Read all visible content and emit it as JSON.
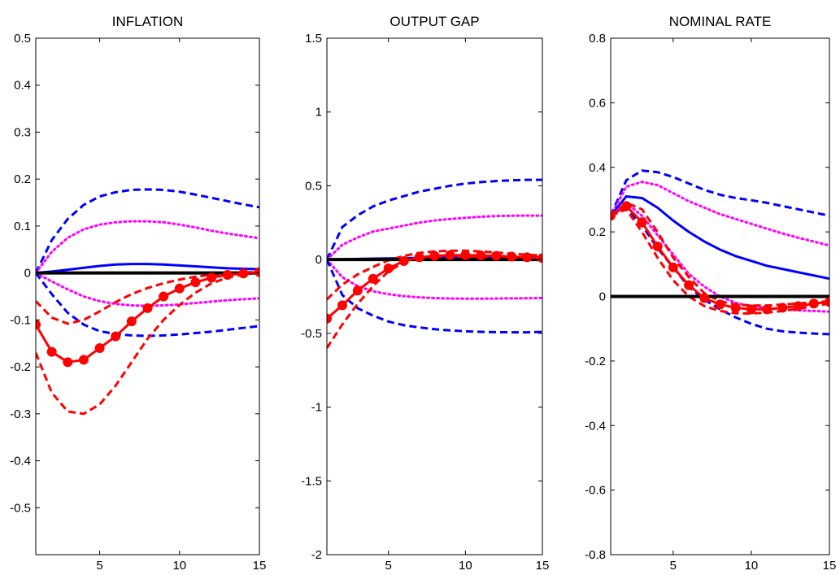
{
  "figure": {
    "background": "#ffffff"
  },
  "chart_data": [
    {
      "type": "line",
      "title": "INFLATION",
      "xlim": [
        1,
        15
      ],
      "ylim": [
        -0.6,
        0.5
      ],
      "xticks": [
        5,
        10,
        15
      ],
      "yticks": [
        -0.5,
        -0.4,
        -0.3,
        -0.2,
        -0.1,
        0,
        0.1,
        0.2,
        0.3,
        0.4,
        0.5
      ],
      "yticklabels": [
        "-0.5",
        "-0.4",
        "-0.3",
        "-0.2",
        "-0.1",
        "0",
        "0.1",
        "0.2",
        "0.3",
        "0.4",
        "0.5"
      ],
      "grid": false,
      "x": [
        1,
        2,
        3,
        4,
        5,
        6,
        7,
        8,
        9,
        10,
        11,
        12,
        13,
        14,
        15
      ],
      "series": [
        {
          "color": "#0000ff",
          "style": "dashed",
          "width": 3,
          "marker": null,
          "values": [
            0,
            0.07,
            0.115,
            0.145,
            0.163,
            0.172,
            0.177,
            0.178,
            0.177,
            0.173,
            0.167,
            0.16,
            0.153,
            0.146,
            0.14
          ]
        },
        {
          "color": "#ff00ff",
          "style": "dotted",
          "width": 3,
          "marker": null,
          "values": [
            0,
            0.045,
            0.075,
            0.093,
            0.103,
            0.108,
            0.11,
            0.11,
            0.108,
            0.103,
            0.097,
            0.09,
            0.084,
            0.079,
            0.074
          ]
        },
        {
          "color": "#0000ff",
          "style": "solid",
          "width": 3,
          "marker": null,
          "values": [
            0,
            0.003,
            0.007,
            0.011,
            0.015,
            0.018,
            0.019,
            0.019,
            0.018,
            0.016,
            0.014,
            0.012,
            0.01,
            0.009,
            0.008
          ]
        },
        {
          "color": "#ff00ff",
          "style": "dotted",
          "width": 3,
          "marker": null,
          "values": [
            0,
            -0.018,
            -0.035,
            -0.05,
            -0.06,
            -0.066,
            -0.069,
            -0.07,
            -0.069,
            -0.067,
            -0.064,
            -0.061,
            -0.058,
            -0.056,
            -0.054
          ]
        },
        {
          "color": "#0000ff",
          "style": "dashed",
          "width": 3,
          "marker": null,
          "values": [
            0,
            -0.045,
            -0.085,
            -0.11,
            -0.124,
            -0.13,
            -0.133,
            -0.134,
            -0.133,
            -0.131,
            -0.128,
            -0.125,
            -0.121,
            -0.117,
            -0.113
          ]
        },
        {
          "color": "#ff0000",
          "style": "dashed",
          "width": 3,
          "marker": null,
          "values": [
            -0.06,
            -0.095,
            -0.108,
            -0.1,
            -0.082,
            -0.062,
            -0.045,
            -0.032,
            -0.022,
            -0.014,
            -0.008,
            -0.004,
            -0.001,
            0.001,
            0.002
          ]
        },
        {
          "color": "#ff0000",
          "style": "dashed",
          "width": 3,
          "marker": null,
          "values": [
            -0.17,
            -0.255,
            -0.295,
            -0.3,
            -0.28,
            -0.24,
            -0.19,
            -0.14,
            -0.1,
            -0.068,
            -0.042,
            -0.022,
            -0.01,
            -0.003,
            0.001
          ]
        },
        {
          "color": "#000000",
          "style": "solid",
          "width": 4,
          "marker": null,
          "values": [
            0,
            0,
            0,
            0,
            0,
            0,
            0,
            0,
            0,
            0,
            0,
            0,
            0,
            0,
            0
          ]
        },
        {
          "color": "#ff0000",
          "style": "solid",
          "width": 3,
          "marker": "circle",
          "values": [
            -0.11,
            -0.168,
            -0.19,
            -0.185,
            -0.16,
            -0.135,
            -0.103,
            -0.075,
            -0.05,
            -0.033,
            -0.02,
            -0.01,
            -0.004,
            -0.001,
            0.002
          ]
        }
      ]
    },
    {
      "type": "line",
      "title": "OUTPUT GAP",
      "xlim": [
        1,
        15
      ],
      "ylim": [
        -2,
        1.5
      ],
      "xticks": [
        5,
        10,
        15
      ],
      "yticks": [
        -2,
        -1.5,
        -1,
        -0.5,
        0,
        0.5,
        1,
        1.5
      ],
      "yticklabels": [
        "-2",
        "-1.5",
        "-1",
        "-0.5",
        "0",
        "0.5",
        "1",
        "1.5"
      ],
      "grid": false,
      "x": [
        1,
        2,
        3,
        4,
        5,
        6,
        7,
        8,
        9,
        10,
        11,
        12,
        13,
        14,
        15
      ],
      "series": [
        {
          "color": "#0000ff",
          "style": "dashed",
          "width": 3,
          "marker": null,
          "values": [
            0,
            0.22,
            0.3,
            0.36,
            0.4,
            0.43,
            0.46,
            0.48,
            0.5,
            0.515,
            0.525,
            0.532,
            0.537,
            0.54,
            0.54
          ]
        },
        {
          "color": "#ff00ff",
          "style": "dotted",
          "width": 3,
          "marker": null,
          "values": [
            0,
            0.1,
            0.15,
            0.19,
            0.21,
            0.23,
            0.25,
            0.265,
            0.275,
            0.283,
            0.29,
            0.295,
            0.297,
            0.298,
            0.298
          ]
        },
        {
          "color": "#0000ff",
          "style": "solid",
          "width": 3,
          "marker": null,
          "values": [
            0,
            0.002,
            0.004,
            0.006,
            0.008,
            0.01,
            0.011,
            0.012,
            0.013,
            0.014,
            0.014,
            0.015,
            0.015,
            0.015,
            0.015
          ]
        },
        {
          "color": "#ff00ff",
          "style": "dotted",
          "width": 3,
          "marker": null,
          "values": [
            0,
            -0.12,
            -0.18,
            -0.215,
            -0.235,
            -0.248,
            -0.256,
            -0.261,
            -0.264,
            -0.265,
            -0.265,
            -0.264,
            -0.263,
            -0.262,
            -0.26
          ]
        },
        {
          "color": "#0000ff",
          "style": "dashed",
          "width": 3,
          "marker": null,
          "values": [
            0,
            -0.24,
            -0.33,
            -0.38,
            -0.42,
            -0.445,
            -0.46,
            -0.472,
            -0.48,
            -0.486,
            -0.49,
            -0.492,
            -0.493,
            -0.493,
            -0.49
          ]
        },
        {
          "color": "#ff0000",
          "style": "dashed",
          "width": 3,
          "marker": null,
          "values": [
            -0.27,
            -0.17,
            -0.1,
            -0.05,
            -0.005,
            0.025,
            0.045,
            0.055,
            0.06,
            0.06,
            0.055,
            0.048,
            0.04,
            0.033,
            0.027
          ]
        },
        {
          "color": "#ff0000",
          "style": "dashed",
          "width": 3,
          "marker": null,
          "values": [
            -0.6,
            -0.44,
            -0.3,
            -0.18,
            -0.08,
            -0.02,
            0.01,
            0.02,
            0.022,
            0.02,
            0.018,
            0.015,
            0.012,
            0.01,
            0.008
          ]
        },
        {
          "color": "#000000",
          "style": "solid",
          "width": 4,
          "marker": null,
          "values": [
            0,
            0,
            0,
            0,
            0,
            0,
            0,
            0,
            0,
            0,
            0,
            0,
            0,
            0,
            0
          ]
        },
        {
          "color": "#ff0000",
          "style": "solid",
          "width": 3,
          "marker": "circle",
          "values": [
            -0.4,
            -0.31,
            -0.21,
            -0.13,
            -0.06,
            -0.01,
            0.015,
            0.025,
            0.03,
            0.03,
            0.028,
            0.025,
            0.02,
            0.015,
            0.01
          ]
        }
      ]
    },
    {
      "type": "line",
      "title": "NOMINAL RATE",
      "xlim": [
        1,
        15
      ],
      "ylim": [
        -0.8,
        0.8
      ],
      "xticks": [
        5,
        10,
        15
      ],
      "yticks": [
        -0.8,
        -0.6,
        -0.4,
        -0.2,
        0,
        0.2,
        0.4,
        0.6,
        0.8
      ],
      "yticklabels": [
        "-0.8",
        "-0.6",
        "-0.4",
        "-0.2",
        "0",
        "0.2",
        "0.4",
        "0.6",
        "0.8"
      ],
      "grid": false,
      "x": [
        1,
        2,
        3,
        4,
        5,
        6,
        7,
        8,
        9,
        10,
        11,
        12,
        13,
        14,
        15
      ],
      "series": [
        {
          "color": "#0000ff",
          "style": "dashed",
          "width": 3,
          "marker": null,
          "values": [
            0.25,
            0.36,
            0.39,
            0.385,
            0.37,
            0.35,
            0.33,
            0.315,
            0.305,
            0.298,
            0.29,
            0.28,
            0.27,
            0.26,
            0.25
          ]
        },
        {
          "color": "#ff00ff",
          "style": "dotted",
          "width": 3,
          "marker": null,
          "values": [
            0.25,
            0.34,
            0.355,
            0.345,
            0.32,
            0.295,
            0.275,
            0.255,
            0.24,
            0.225,
            0.21,
            0.195,
            0.182,
            0.17,
            0.158
          ]
        },
        {
          "color": "#0000ff",
          "style": "solid",
          "width": 3,
          "marker": null,
          "values": [
            0.25,
            0.31,
            0.305,
            0.275,
            0.235,
            0.2,
            0.17,
            0.145,
            0.125,
            0.11,
            0.095,
            0.085,
            0.075,
            0.065,
            0.055
          ]
        },
        {
          "color": "#ff00ff",
          "style": "dotted",
          "width": 3,
          "marker": null,
          "values": [
            0.25,
            0.29,
            0.25,
            0.19,
            0.13,
            0.07,
            0.03,
            0,
            -0.02,
            -0.03,
            -0.035,
            -0.04,
            -0.043,
            -0.045,
            -0.047
          ]
        },
        {
          "color": "#0000ff",
          "style": "dashed",
          "width": 3,
          "marker": null,
          "values": [
            0.25,
            0.27,
            0.22,
            0.15,
            0.09,
            0.03,
            -0.01,
            -0.04,
            -0.065,
            -0.085,
            -0.1,
            -0.108,
            -0.112,
            -0.115,
            -0.117
          ]
        },
        {
          "color": "#ff0000",
          "style": "dashed",
          "width": 3,
          "marker": null,
          "values": [
            0.25,
            0.29,
            0.27,
            0.2,
            0.12,
            0.06,
            0.01,
            -0.015,
            -0.025,
            -0.028,
            -0.028,
            -0.025,
            -0.022,
            -0.018,
            -0.015
          ]
        },
        {
          "color": "#ff0000",
          "style": "dashed",
          "width": 3,
          "marker": null,
          "values": [
            0.25,
            0.27,
            0.2,
            0.12,
            0.05,
            0,
            -0.03,
            -0.045,
            -0.052,
            -0.053,
            -0.05,
            -0.045,
            -0.038,
            -0.03,
            -0.022
          ]
        },
        {
          "color": "#000000",
          "style": "solid",
          "width": 4,
          "marker": null,
          "values": [
            0,
            0,
            0,
            0,
            0,
            0,
            0,
            0,
            0,
            0,
            0,
            0,
            0,
            0,
            0
          ]
        },
        {
          "color": "#ff0000",
          "style": "solid",
          "width": 3,
          "marker": "circle",
          "values": [
            0.25,
            0.28,
            0.23,
            0.155,
            0.09,
            0.035,
            -0.005,
            -0.025,
            -0.035,
            -0.04,
            -0.04,
            -0.035,
            -0.03,
            -0.022,
            -0.017
          ]
        }
      ]
    }
  ]
}
